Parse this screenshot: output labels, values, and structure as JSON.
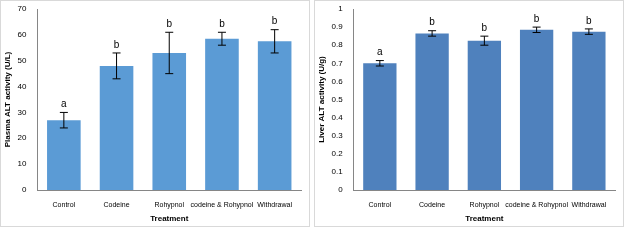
{
  "chart_data": [
    {
      "type": "bar",
      "categories": [
        "Control",
        "Codeine",
        "Rohypnol",
        "codeine & Rohypnol",
        "Withdrawal"
      ],
      "values": [
        27,
        48,
        53,
        58.5,
        57.5
      ],
      "errors": [
        3,
        5,
        8,
        2.5,
        4.5
      ],
      "significance_labels": [
        "a",
        "b",
        "b",
        "b",
        "b"
      ],
      "color": "#5b9bd5",
      "x_label": "Treatment",
      "y_label": "Plasma ALT activity (U/L)",
      "ylim": [
        0,
        70
      ],
      "yticks": [
        0,
        10,
        20,
        30,
        40,
        50,
        60,
        70
      ],
      "grid": false
    },
    {
      "type": "bar",
      "categories": [
        "Control",
        "Codeine",
        "Rohypnol",
        "codeine & Rohypnol",
        "Withdrawal"
      ],
      "values": [
        0.7,
        0.865,
        0.825,
        0.885,
        0.875
      ],
      "errors": [
        0.015,
        0.015,
        0.025,
        0.015,
        0.015
      ],
      "significance_labels": [
        "a",
        "b",
        "b",
        "b",
        "b"
      ],
      "color": "#4f81bd",
      "x_label": "Treatment",
      "y_label": "Liver ALT activity (U/g)",
      "ylim": [
        0,
        1
      ],
      "yticks": [
        0,
        0.1,
        0.2,
        0.3,
        0.4,
        0.5,
        0.6,
        0.7,
        0.8,
        0.9,
        1
      ],
      "grid": false
    }
  ]
}
